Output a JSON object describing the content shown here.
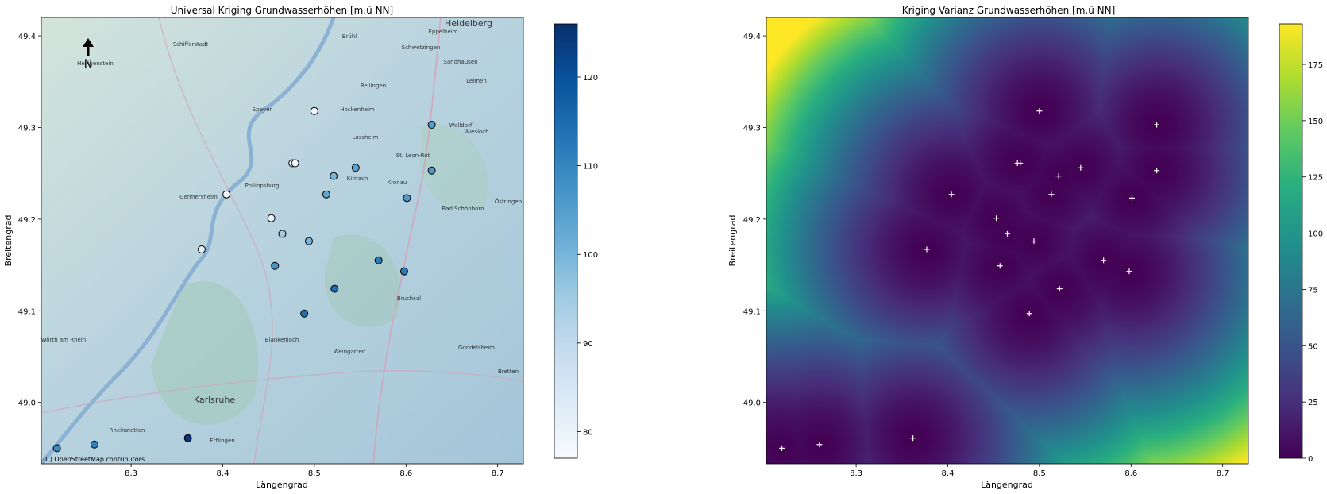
{
  "chart_data": [
    {
      "type": "scatter",
      "title": "Universal Kriging Grundwasserhöhen [m.ü NN]",
      "xlabel": "Längengrad",
      "ylabel": "Breitengrad",
      "xlim": [
        8.202,
        8.728
      ],
      "ylim": [
        48.933,
        49.42
      ],
      "xticks": [
        "8.3",
        "8.4",
        "8.5",
        "8.6",
        "8.7"
      ],
      "yticks": [
        "49.0",
        "49.1",
        "49.2",
        "49.3",
        "49.4"
      ],
      "north_arrow_label": "N",
      "attribution": "(C) OpenStreetMap contributors",
      "basemap": "OpenStreetMap",
      "colormap": "Blues",
      "colorbar": {
        "vmin": 77,
        "vmax": 126,
        "ticks": [
          "80",
          "90",
          "100",
          "110",
          "120"
        ]
      },
      "map_labels": [
        "Heidelberg",
        "Eppelheim",
        "Schifferstadt",
        "Brühl",
        "Schwetzingen",
        "Speyer",
        "Hockenheim",
        "Walldorf",
        "Wiesloch",
        "St. Leon-Rot",
        "Philippsburg",
        "Germersheim",
        "Bad Schönborn",
        "Bruchsal",
        "Karlsruhe",
        "Blankenloch",
        "Weingarten",
        "Rheinstetten",
        "Ettlingen",
        "Bretten",
        "Gondelsheim",
        "Wörth am Rhein",
        "Sandhausen",
        "Leimen",
        "Östringen",
        "Reilingen",
        "Kirrlach",
        "Lussheim",
        "Kronau",
        "Heiligenstein"
      ],
      "points": [
        {
          "x": 8.5,
          "y": 49.318,
          "value": 78
        },
        {
          "x": 8.628,
          "y": 49.303,
          "value": 105
        },
        {
          "x": 8.476,
          "y": 49.261,
          "value": 78
        },
        {
          "x": 8.479,
          "y": 49.261,
          "value": 79
        },
        {
          "x": 8.545,
          "y": 49.256,
          "value": 104
        },
        {
          "x": 8.628,
          "y": 49.253,
          "value": 106
        },
        {
          "x": 8.521,
          "y": 49.247,
          "value": 100
        },
        {
          "x": 8.404,
          "y": 49.227,
          "value": 78
        },
        {
          "x": 8.513,
          "y": 49.227,
          "value": 103
        },
        {
          "x": 8.601,
          "y": 49.223,
          "value": 106
        },
        {
          "x": 8.453,
          "y": 49.201,
          "value": 80
        },
        {
          "x": 8.465,
          "y": 49.184,
          "value": 95
        },
        {
          "x": 8.494,
          "y": 49.176,
          "value": 100
        },
        {
          "x": 8.377,
          "y": 49.167,
          "value": 81
        },
        {
          "x": 8.57,
          "y": 49.155,
          "value": 112
        },
        {
          "x": 8.457,
          "y": 49.149,
          "value": 107
        },
        {
          "x": 8.598,
          "y": 49.143,
          "value": 112
        },
        {
          "x": 8.522,
          "y": 49.124,
          "value": 115
        },
        {
          "x": 8.489,
          "y": 49.097,
          "value": 114
        },
        {
          "x": 8.219,
          "y": 48.95,
          "value": 109
        },
        {
          "x": 8.26,
          "y": 48.954,
          "value": 111
        },
        {
          "x": 8.362,
          "y": 48.961,
          "value": 125
        }
      ]
    },
    {
      "type": "heatmap",
      "title": "Kriging Varianz Grundwasserhöhen [m.ü NN]",
      "xlabel": "Längengrad",
      "ylabel": "Breitengrad",
      "xlim": [
        8.202,
        8.728
      ],
      "ylim": [
        48.933,
        49.42
      ],
      "xticks": [
        "8.3",
        "8.4",
        "8.5",
        "8.6",
        "8.7"
      ],
      "yticks": [
        "49.0",
        "49.1",
        "49.2",
        "49.3",
        "49.4"
      ],
      "colormap": "viridis",
      "colorbar": {
        "vmin": 0,
        "vmax": 193,
        "ticks": [
          "0",
          "25",
          "50",
          "75",
          "100",
          "125",
          "150",
          "175"
        ]
      },
      "point_marker": "+",
      "point_color": "#ffffff"
    }
  ]
}
